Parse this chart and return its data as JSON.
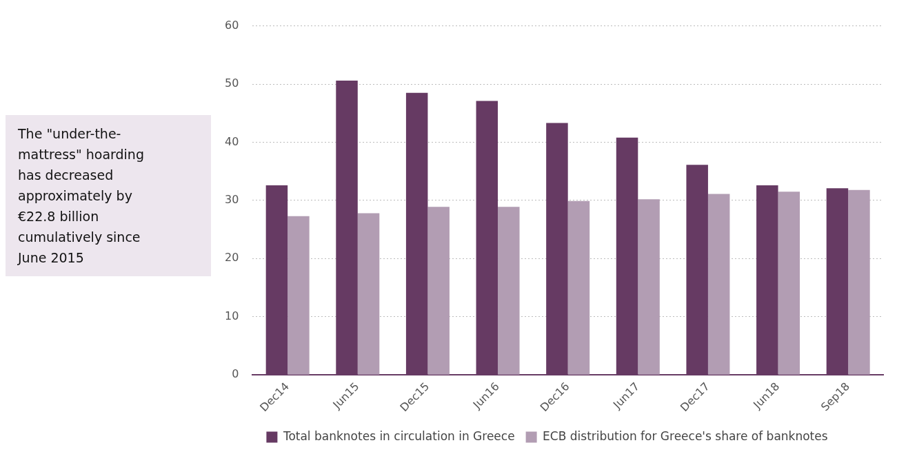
{
  "chart_data": {
    "type": "bar",
    "categories": [
      "Dec14",
      "Jun15",
      "Dec15",
      "Jun16",
      "Dec16",
      "Jun17",
      "Dec17",
      "Jun18",
      "Sep18"
    ],
    "series": [
      {
        "name": "Total banknotes in circulation in Greece",
        "color": "#663a63",
        "values": [
          32.6,
          50.6,
          48.5,
          47.1,
          43.3,
          40.8,
          36.1,
          32.6,
          32.1
        ]
      },
      {
        "name": "ECB distribution for Greece's share of banknotes",
        "color": "#b29db3",
        "values": [
          27.3,
          27.8,
          28.9,
          28.9,
          29.9,
          30.2,
          31.1,
          31.5,
          31.8
        ]
      }
    ],
    "ylim": [
      0,
      60
    ],
    "yticks": [
      0,
      10,
      20,
      30,
      40,
      50,
      60
    ],
    "grid": "y",
    "legend": "bottom",
    "marker": "square",
    "annotations": [
      "The \"under-the-mattress\" hoarding has decreased approximately by €22.8 billion cumulatively since June 2015"
    ]
  }
}
